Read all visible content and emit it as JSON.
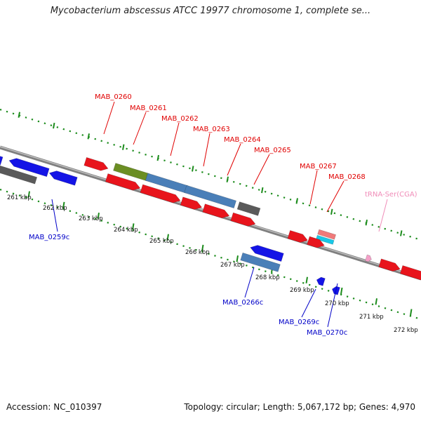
{
  "title": "Mycobacterium abscessus ATCC 19977 chromosome 1, complete se...",
  "footer": {
    "accession": "Accession: NC_010397",
    "summary": "Topology: circular; Length: 5,067,172 bp; Genes: 4,970"
  },
  "colors": {
    "cds": "#e8141c",
    "cds_reverse": "#1414e6",
    "gene_grey": "#5a5a5a",
    "steel_blue": "#4a7fb8",
    "olive": "#6b8e23",
    "pink": "#f07a7a",
    "cyan": "#18c8e8",
    "trna": "#f4a0c8",
    "backbone": "#7f7f7f",
    "dots": "#1c8c1c",
    "forward_label": "#e00000",
    "reverse_label": "#0000c8",
    "trna_label": "#f08cb8"
  },
  "forward_genes": [
    "MAB_0260",
    "MAB_0261",
    "MAB_0262",
    "MAB_0263",
    "MAB_0264",
    "MAB_0265",
    "MAB_0267",
    "MAB_0268"
  ],
  "reverse_genes": [
    "MAB_0259c",
    "MAB_0266c",
    "MAB_0269c",
    "MAB_0270c"
  ],
  "rna_genes": [
    "tRNA-Ser(CGA)"
  ],
  "kbp_ticks": [
    "261 kbp",
    "262 kbp",
    "263 kbp",
    "264 kbp",
    "265 kbp",
    "266 kbp",
    "267 kbp",
    "268 kbp",
    "269 kbp",
    "270 kbp",
    "271 kbp",
    "272 kbp"
  ]
}
